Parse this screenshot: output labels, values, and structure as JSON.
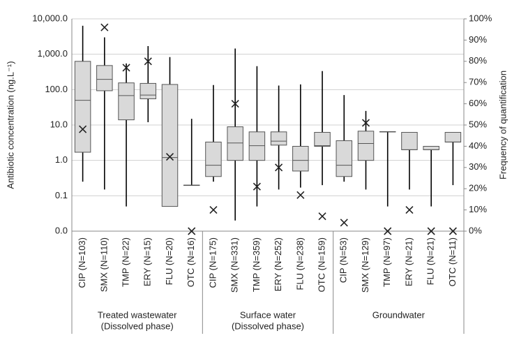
{
  "chart_data": {
    "type": "box",
    "y_title": "Antibiotic concentration (ng.L⁻¹)",
    "y2_title": "Frequency of quantification",
    "log_y": true,
    "grid": true,
    "box_color": "#d9d9d9",
    "line_color": "#000000",
    "marker_color": "#222222",
    "groups": [
      {
        "label": [
          "Treated wastewater",
          "(Dissolved phase)"
        ],
        "categories": [
          "CIP (N=103)",
          "SMX (N=110)",
          "TMP (N=22)",
          "ERY (N=15)",
          "FLU (N=20)",
          "OTC (N=16)"
        ]
      },
      {
        "label": [
          "Surface water",
          "(Dissolved phase)"
        ],
        "categories": [
          "CIP (N=175)",
          "SMX (N=331)",
          "TMP (N=359)",
          "ERY (N=252)",
          "FLU (N=238)",
          "OTC (N=159)"
        ]
      },
      {
        "label": [
          "Groundwater"
        ],
        "categories": [
          "CIP (N=53)",
          "SMX (N=129)",
          "TMP (N=97)",
          "ERY (N=21)",
          "FLU (N=21)",
          "OTC (N=11)"
        ]
      }
    ],
    "boxes": {
      "min": [
        0.25,
        0.15,
        0.05,
        12,
        0.05,
        0.2,
        0.25,
        0.02,
        0.05,
        0.15,
        0.17,
        0.2,
        0.25,
        0.15,
        0.05,
        0.15,
        0.05,
        0.2
      ],
      "q1": [
        1.7,
        93,
        14,
        55,
        0.05,
        0.2,
        0.35,
        1.0,
        1.0,
        2.7,
        0.5,
        2.5,
        0.35,
        1.0,
        6.5,
        2.0,
        2.0,
        3.3
      ],
      "median": [
        50,
        195,
        68,
        70,
        1.2,
        0.2,
        0.73,
        3.1,
        2.6,
        3.5,
        1.0,
        2.6,
        0.73,
        3.0,
        6.5,
        2.0,
        2.0,
        3.3
      ],
      "q3": [
        630,
        480,
        155,
        150,
        140,
        0.2,
        3.3,
        8.9,
        6.4,
        6.4,
        2.5,
        6.2,
        3.6,
        6.7,
        6.5,
        6.2,
        2.5,
        6.2
      ],
      "max": [
        6400,
        3000,
        550,
        1700,
        830,
        15,
        135,
        1450,
        460,
        130,
        140,
        335,
        70,
        25,
        6.5,
        6.2,
        2.5,
        6.2
      ]
    },
    "frequency": {
      "axis": "y2",
      "marker": "x",
      "values": [
        48,
        96,
        77,
        80,
        35,
        0,
        10,
        60,
        21,
        30,
        17,
        7,
        4,
        51,
        0,
        10,
        0,
        0
      ]
    },
    "ylim": [
      0.01,
      10000
    ],
    "yticks": [
      {
        "value": 0.01,
        "label": "0.0"
      },
      {
        "value": 0.1,
        "label": "0.1"
      },
      {
        "value": 1,
        "label": "1.0"
      },
      {
        "value": 10,
        "label": "10.0"
      },
      {
        "value": 100,
        "label": "100.0"
      },
      {
        "value": 1000,
        "label": "1,000.0"
      },
      {
        "value": 10000,
        "label": "10,000.0"
      }
    ],
    "y2lim": [
      0,
      100
    ],
    "y2ticks": [
      {
        "value": 0,
        "label": "0%"
      },
      {
        "value": 10,
        "label": "10%"
      },
      {
        "value": 20,
        "label": "20%"
      },
      {
        "value": 30,
        "label": "30%"
      },
      {
        "value": 40,
        "label": "40%"
      },
      {
        "value": 50,
        "label": "50%"
      },
      {
        "value": 60,
        "label": "60%"
      },
      {
        "value": 70,
        "label": "70%"
      },
      {
        "value": 80,
        "label": "80%"
      },
      {
        "value": 90,
        "label": "90%"
      },
      {
        "value": 100,
        "label": "100%"
      }
    ]
  }
}
